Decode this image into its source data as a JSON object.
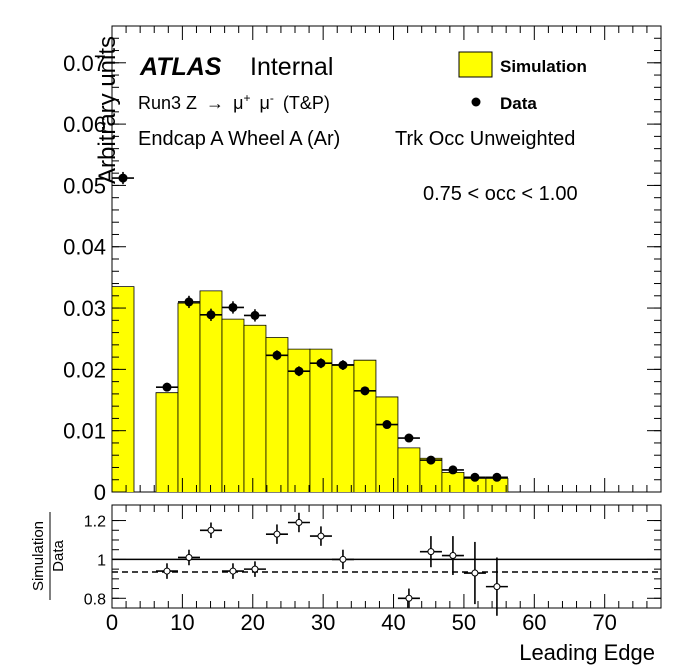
{
  "chart_data": [
    {
      "type": "bar",
      "panel": "main",
      "ylabel": "Arbitrary units",
      "xlabel": "Leading Edge",
      "xlim": [
        0,
        78
      ],
      "ylim": [
        0,
        0.076
      ],
      "yticks": [
        0,
        0.01,
        0.02,
        0.03,
        0.04,
        0.05,
        0.06,
        0.07
      ],
      "ytick_labels": [
        "0",
        "0.01",
        "0.02",
        "0.03",
        "0.04",
        "0.05",
        "0.06",
        "0.07"
      ],
      "labels": {
        "atlas": "ATLAS",
        "internal": "Internal",
        "process_prefix": "Run3 Z",
        "process_arrow": "→",
        "process_mu": "μ",
        "process_plus": "+",
        "process_minus": "-",
        "process_suffix": "(T&P)",
        "region": "Endcap A Wheel A (Ar)",
        "weighting": "Trk Occ Unweighted",
        "selection": "0.75 < occ < 1.00"
      },
      "legend": {
        "position": "top-right",
        "entries": [
          {
            "name": "Simulation",
            "style": "filled-box",
            "color": "#ffff00"
          },
          {
            "name": "Data",
            "style": "marker",
            "color": "#000000"
          }
        ]
      },
      "simulation_histogram": {
        "color": "#ffff00",
        "bins": [
          {
            "x0": 0,
            "x1": 3.125,
            "y": 0.0335
          },
          {
            "x0": 3.125,
            "x1": 6.25,
            "y": 0
          },
          {
            "x0": 6.25,
            "x1": 9.375,
            "y": 0.0162
          },
          {
            "x0": 9.375,
            "x1": 12.5,
            "y": 0.0308
          },
          {
            "x0": 12.5,
            "x1": 15.625,
            "y": 0.0328
          },
          {
            "x0": 15.625,
            "x1": 18.75,
            "y": 0.0282
          },
          {
            "x0": 18.75,
            "x1": 21.875,
            "y": 0.0272
          },
          {
            "x0": 21.875,
            "x1": 25,
            "y": 0.0252
          },
          {
            "x0": 25,
            "x1": 28.125,
            "y": 0.0233
          },
          {
            "x0": 28.125,
            "x1": 31.25,
            "y": 0.0233
          },
          {
            "x0": 31.25,
            "x1": 34.375,
            "y": 0.0208
          },
          {
            "x0": 34.375,
            "x1": 37.5,
            "y": 0.0215
          },
          {
            "x0": 37.5,
            "x1": 40.625,
            "y": 0.0155
          },
          {
            "x0": 40.625,
            "x1": 43.75,
            "y": 0.0072
          },
          {
            "x0": 43.75,
            "x1": 46.875,
            "y": 0.0055
          },
          {
            "x0": 46.875,
            "x1": 50,
            "y": 0.0032
          },
          {
            "x0": 50,
            "x1": 53.125,
            "y": 0.0022
          },
          {
            "x0": 53.125,
            "x1": 56.25,
            "y": 0.0022
          }
        ]
      },
      "data_points": [
        {
          "x": 1.5625,
          "y": 0.0512,
          "yerr": 0.001
        },
        {
          "x": 7.8125,
          "y": 0.0171,
          "yerr": 0.0007
        },
        {
          "x": 10.9375,
          "y": 0.031,
          "yerr": 0.001
        },
        {
          "x": 14.0625,
          "y": 0.0289,
          "yerr": 0.001
        },
        {
          "x": 17.1875,
          "y": 0.0301,
          "yerr": 0.001
        },
        {
          "x": 20.3125,
          "y": 0.0288,
          "yerr": 0.001
        },
        {
          "x": 23.4375,
          "y": 0.0223,
          "yerr": 0.0008
        },
        {
          "x": 26.5625,
          "y": 0.0197,
          "yerr": 0.0008
        },
        {
          "x": 29.6875,
          "y": 0.021,
          "yerr": 0.0008
        },
        {
          "x": 32.8125,
          "y": 0.0207,
          "yerr": 0.0008
        },
        {
          "x": 35.9375,
          "y": 0.0165,
          "yerr": 0.0007
        },
        {
          "x": 39.0625,
          "y": 0.011,
          "yerr": 0.0005
        },
        {
          "x": 42.1875,
          "y": 0.0088,
          "yerr": 0.0005
        },
        {
          "x": 45.3125,
          "y": 0.0052,
          "yerr": 0.0004
        },
        {
          "x": 48.4375,
          "y": 0.0036,
          "yerr": 0.0003
        },
        {
          "x": 51.5625,
          "y": 0.0024,
          "yerr": 0.0003
        },
        {
          "x": 54.6875,
          "y": 0.0024,
          "yerr": 0.0003
        }
      ],
      "x_bin_half_width": 1.5625
    },
    {
      "type": "scatter",
      "panel": "ratio",
      "ylabel_top": "Simulation",
      "ylabel_bottom": "Data",
      "xlabel": "Leading Edge",
      "xlim": [
        0,
        78
      ],
      "ylim": [
        0.75,
        1.28
      ],
      "yticks": [
        0.8,
        1,
        1.2
      ],
      "ytick_labels": [
        "0.8",
        "1",
        "1.2"
      ],
      "xticks": [
        0,
        10,
        20,
        30,
        40,
        50,
        60,
        70
      ],
      "xtick_labels": [
        "0",
        "10",
        "20",
        "30",
        "40",
        "50",
        "60",
        "70"
      ],
      "reference_line": 1.0,
      "dashed_line": 0.935,
      "points": [
        {
          "x": 7.8125,
          "y": 0.94,
          "yerr": 0.04
        },
        {
          "x": 10.9375,
          "y": 1.01,
          "yerr": 0.04
        },
        {
          "x": 14.0625,
          "y": 1.15,
          "yerr": 0.04
        },
        {
          "x": 17.1875,
          "y": 0.94,
          "yerr": 0.04
        },
        {
          "x": 20.3125,
          "y": 0.95,
          "yerr": 0.04
        },
        {
          "x": 23.4375,
          "y": 1.13,
          "yerr": 0.05
        },
        {
          "x": 26.5625,
          "y": 1.19,
          "yerr": 0.05
        },
        {
          "x": 29.6875,
          "y": 1.12,
          "yerr": 0.05
        },
        {
          "x": 32.8125,
          "y": 1.0,
          "yerr": 0.05
        },
        {
          "x": 42.1875,
          "y": 0.8,
          "yerr": 0.05
        },
        {
          "x": 45.3125,
          "y": 1.04,
          "yerr": 0.08
        },
        {
          "x": 48.4375,
          "y": 1.02,
          "yerr": 0.1
        },
        {
          "x": 51.5625,
          "y": 0.93,
          "yerr": 0.16
        },
        {
          "x": 54.6875,
          "y": 0.86,
          "yerr": 0.15
        }
      ]
    }
  ]
}
